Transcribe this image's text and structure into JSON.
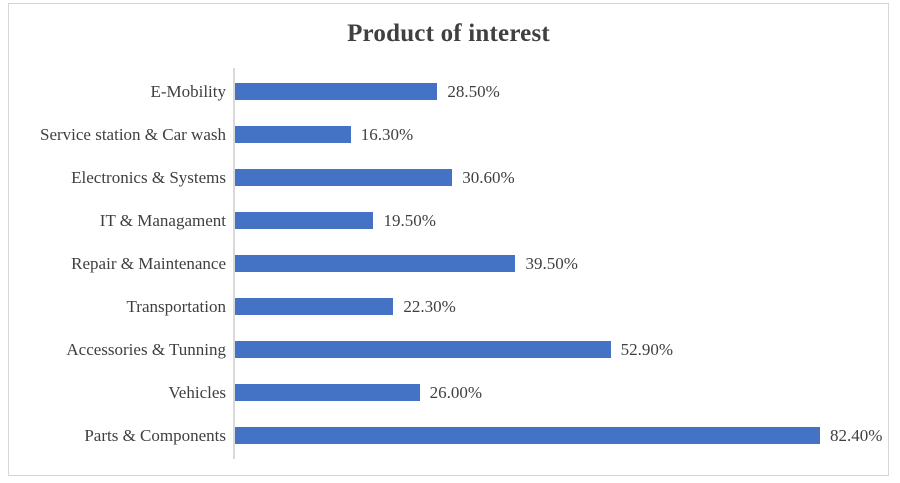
{
  "panel": {
    "background": "#ffffff",
    "border_color": "#d6d6d6"
  },
  "chart_data": {
    "type": "bar",
    "orientation": "horizontal",
    "title": "Product of interest",
    "xlabel": "",
    "ylabel": "",
    "categories": [
      "E-Mobility",
      "Service station & Car wash",
      "Electronics & Systems",
      "IT & Managament",
      "Repair & Maintenance",
      "Transportation",
      "Accessories & Tunning",
      "Vehicles",
      "Parts & Components"
    ],
    "values": [
      28.5,
      16.3,
      30.6,
      19.5,
      39.5,
      22.3,
      52.9,
      26.0,
      82.4
    ],
    "value_labels": [
      "28.50%",
      "16.30%",
      "30.60%",
      "19.50%",
      "39.50%",
      "22.30%",
      "52.90%",
      "26.00%",
      "82.40%"
    ],
    "xlim": [
      0,
      90
    ],
    "grid": false,
    "legend": false,
    "data_labels_visible": true,
    "bar_color": "#4472c4",
    "axis_line_color": "#d9d9d9",
    "text_color": "#3f3f3f"
  }
}
